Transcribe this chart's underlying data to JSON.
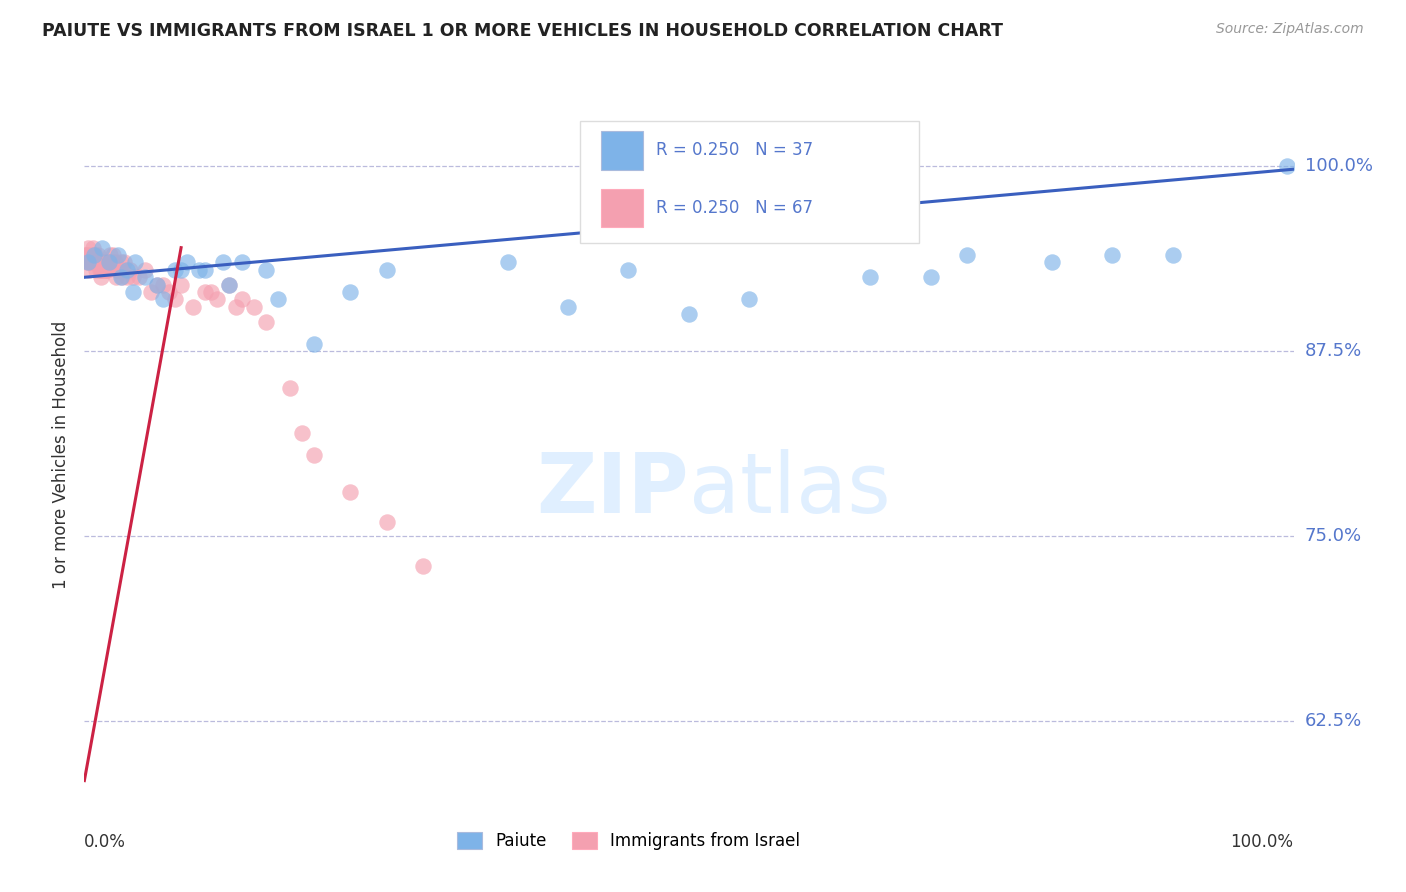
{
  "title": "PAIUTE VS IMMIGRANTS FROM ISRAEL 1 OR MORE VEHICLES IN HOUSEHOLD CORRELATION CHART",
  "source": "Source: ZipAtlas.com",
  "ylabel": "1 or more Vehicles in Household",
  "legend_label1": "Paiute",
  "legend_label2": "Immigrants from Israel",
  "R1": "0.250",
  "N1": "37",
  "R2": "0.250",
  "N2": "67",
  "y_ticks": [
    62.5,
    75.0,
    87.5,
    100.0
  ],
  "y_tick_labels": [
    "62.5%",
    "75.0%",
    "87.5%",
    "100.0%"
  ],
  "x_range": [
    0.0,
    100.0
  ],
  "y_range": [
    57.0,
    104.0
  ],
  "blue_color": "#7EB3E8",
  "pink_color": "#F4A0B0",
  "line_blue": "#3A5FBF",
  "line_pink": "#CC2244",
  "tick_label_color": "#5577CC",
  "paiute_x": [
    0.3,
    0.8,
    1.5,
    2.0,
    2.8,
    3.5,
    4.2,
    5.0,
    6.0,
    7.5,
    8.5,
    10.0,
    11.5,
    13.0,
    15.0,
    22.0,
    35.0,
    45.0,
    50.0,
    55.0,
    65.0,
    70.0,
    73.0,
    80.0,
    85.0,
    90.0,
    99.5,
    3.0,
    4.0,
    6.5,
    8.0,
    9.5,
    12.0,
    16.0,
    19.0,
    25.0,
    40.0
  ],
  "paiute_y": [
    93.5,
    94.0,
    94.5,
    93.5,
    94.0,
    93.0,
    93.5,
    92.5,
    92.0,
    93.0,
    93.5,
    93.0,
    93.5,
    93.5,
    93.0,
    91.5,
    93.5,
    93.0,
    90.0,
    91.0,
    92.5,
    92.5,
    94.0,
    93.5,
    94.0,
    94.0,
    100.0,
    92.5,
    91.5,
    91.0,
    93.0,
    93.0,
    92.0,
    91.0,
    88.0,
    93.0,
    90.5
  ],
  "israel_x": [
    0.1,
    0.2,
    0.3,
    0.4,
    0.5,
    0.6,
    0.7,
    0.8,
    0.9,
    1.0,
    1.1,
    1.2,
    1.3,
    1.4,
    1.5,
    1.6,
    1.7,
    1.8,
    1.9,
    2.0,
    2.2,
    2.4,
    2.6,
    2.8,
    3.0,
    3.2,
    3.5,
    3.8,
    4.0,
    4.5,
    5.0,
    5.5,
    6.0,
    7.0,
    8.0,
    9.0,
    10.0,
    11.0,
    12.0,
    13.0,
    14.0,
    0.15,
    0.35,
    0.55,
    0.75,
    0.95,
    1.15,
    1.35,
    1.55,
    1.75,
    2.1,
    2.3,
    2.5,
    2.7,
    3.1,
    3.3,
    6.5,
    7.5,
    10.5,
    12.5,
    15.0,
    17.0,
    18.0,
    19.0,
    22.0,
    25.0,
    28.0
  ],
  "israel_y": [
    94.0,
    93.5,
    94.5,
    93.0,
    94.0,
    93.5,
    94.5,
    93.5,
    94.0,
    93.0,
    94.0,
    93.5,
    93.0,
    92.5,
    93.0,
    93.5,
    93.0,
    93.5,
    93.0,
    93.5,
    93.5,
    94.0,
    92.5,
    93.0,
    93.5,
    93.0,
    92.5,
    93.0,
    92.5,
    92.5,
    93.0,
    91.5,
    92.0,
    91.5,
    92.0,
    90.5,
    91.5,
    91.0,
    92.0,
    91.0,
    90.5,
    94.0,
    93.5,
    93.5,
    94.0,
    93.5,
    93.5,
    93.0,
    93.5,
    93.0,
    94.0,
    93.5,
    93.5,
    93.0,
    92.5,
    93.5,
    92.0,
    91.0,
    91.5,
    90.5,
    89.5,
    85.0,
    82.0,
    80.5,
    78.0,
    76.0,
    73.0
  ],
  "blue_line_x0": 0.0,
  "blue_line_y0": 92.5,
  "blue_line_x1": 100.0,
  "blue_line_y1": 99.8,
  "pink_line_x0": 0.0,
  "pink_line_y0": 58.5,
  "pink_line_x1": 8.0,
  "pink_line_y1": 94.5
}
